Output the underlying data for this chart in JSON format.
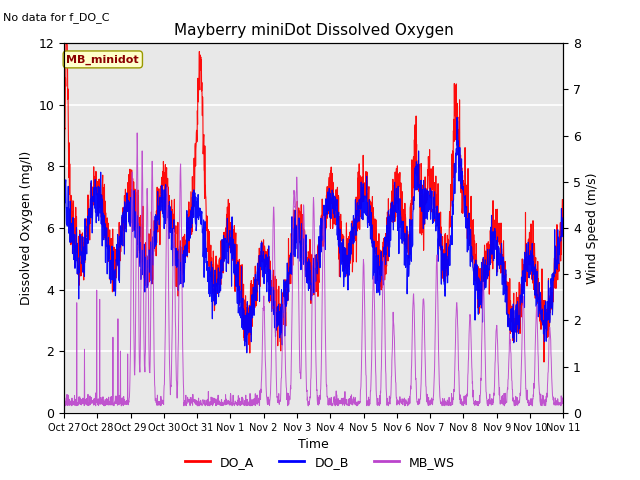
{
  "title": "Mayberry miniDot Dissolved Oxygen",
  "subtitle": "No data for f_DO_C",
  "xlabel": "Time",
  "ylabel_left": "Dissolved Oxygen (mg/l)",
  "ylabel_right": "Wind Speed (m/s)",
  "ylim_left": [
    0,
    12
  ],
  "ylim_right": [
    0.0,
    8.0
  ],
  "yticks_left": [
    0,
    2,
    4,
    6,
    8,
    10,
    12
  ],
  "yticks_right": [
    0.0,
    1.0,
    2.0,
    3.0,
    4.0,
    5.0,
    6.0,
    7.0,
    8.0
  ],
  "xtick_labels": [
    "Oct 27",
    "Oct 28",
    "Oct 29",
    "Oct 30",
    "Oct 31",
    "Nov 1",
    "Nov 2",
    "Nov 3",
    "Nov 4",
    "Nov 5",
    "Nov 6",
    "Nov 7",
    "Nov 8",
    "Nov 9",
    "Nov 10",
    "Nov 11"
  ],
  "color_DO_A": "red",
  "color_DO_B": "blue",
  "color_MB_WS": "#bb44cc",
  "legend_DO_A": "DO_A",
  "legend_DO_B": "DO_B",
  "legend_MB_WS": "MB_WS",
  "sensor_label": "MB_minidot",
  "bg_color": "#e8e8e8",
  "grid_color": "white",
  "n_points": 2000
}
